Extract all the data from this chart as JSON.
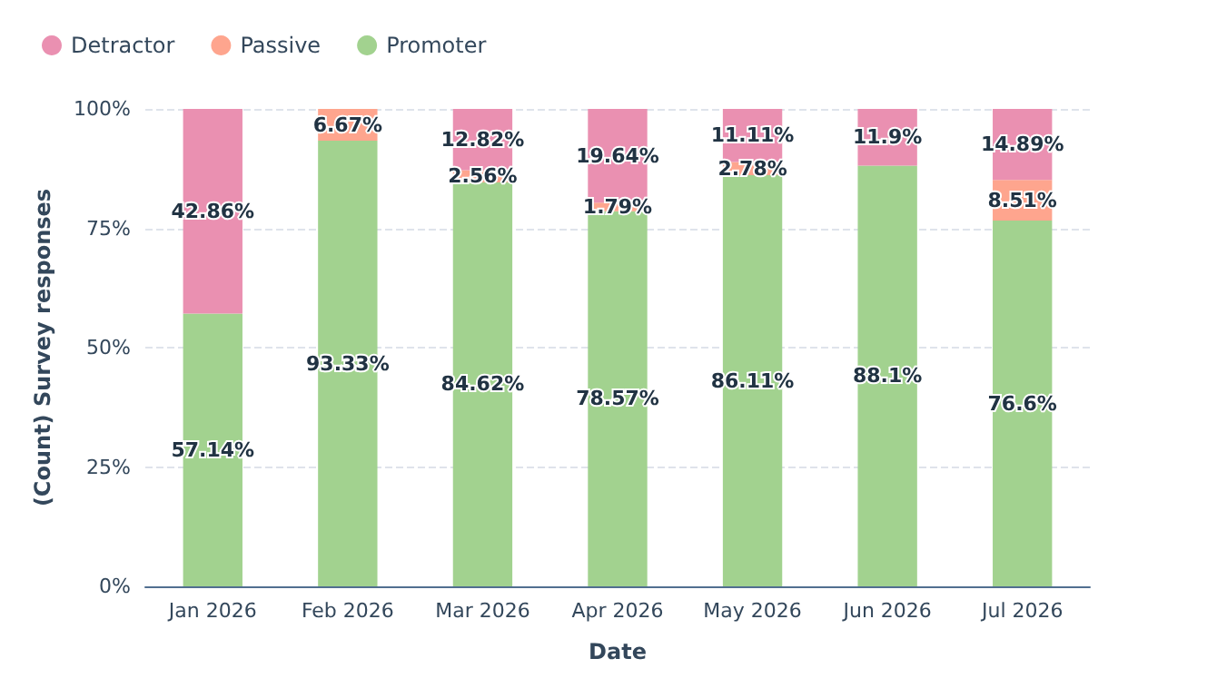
{
  "chart_data": {
    "type": "bar",
    "stacked": true,
    "xlabel": "Date",
    "ylabel": "(Count) Survey responses",
    "categories": [
      "Jan 2026",
      "Feb 2026",
      "Mar 2026",
      "Apr 2026",
      "May 2026",
      "Jun 2026",
      "Jul 2026"
    ],
    "series": [
      {
        "name": "Promoter",
        "color": "#a2d28f",
        "values": [
          57.14,
          93.33,
          84.62,
          78.57,
          86.11,
          88.1,
          76.6
        ],
        "value_labels": [
          "57.14%",
          "93.33%",
          "84.62%",
          "78.57%",
          "86.11%",
          "88.1%",
          "76.6%"
        ]
      },
      {
        "name": "Passive",
        "color": "#fea58e",
        "values": [
          0,
          6.67,
          2.56,
          1.79,
          2.78,
          0,
          8.51
        ],
        "value_labels": [
          null,
          "6.67%",
          "2.56%",
          "1.79%",
          "2.78%",
          null,
          "8.51%"
        ]
      },
      {
        "name": "Detractor",
        "color": "#ea90b1",
        "values": [
          42.86,
          0,
          12.82,
          19.64,
          11.11,
          11.9,
          14.89
        ],
        "value_labels": [
          "42.86%",
          null,
          "12.82%",
          "19.64%",
          "11.11%",
          "11.9%",
          "14.89%"
        ]
      }
    ],
    "ylim": [
      0,
      100
    ],
    "yticks": [
      {
        "value": 0,
        "label": "0%"
      },
      {
        "value": 25,
        "label": "25%"
      },
      {
        "value": 50,
        "label": "50%"
      },
      {
        "value": 75,
        "label": "75%"
      },
      {
        "value": 100,
        "label": "100%"
      }
    ],
    "grid": "y",
    "legend": "top left"
  }
}
